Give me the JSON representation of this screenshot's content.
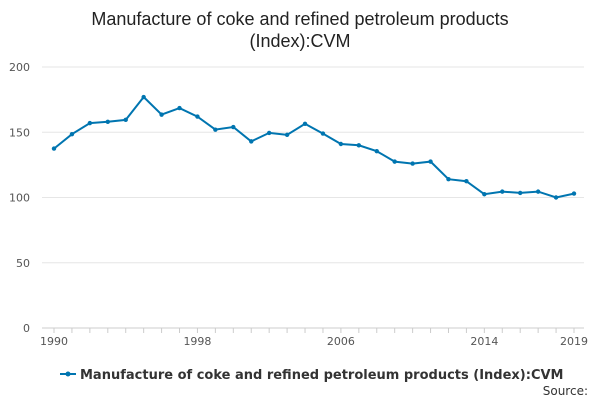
{
  "chart_data": {
    "type": "line",
    "title": "Manufacture of coke and refined petroleum products\n(Index):CVM",
    "xlabel": "",
    "ylabel": "",
    "x": [
      1990,
      1991,
      1992,
      1993,
      1994,
      1995,
      1996,
      1997,
      1998,
      1999,
      2000,
      2001,
      2002,
      2003,
      2004,
      2005,
      2006,
      2007,
      2008,
      2009,
      2010,
      2011,
      2012,
      2013,
      2014,
      2015,
      2016,
      2017,
      2018,
      2019
    ],
    "series": [
      {
        "name": "Manufacture of coke and refined petroleum products (Index):CVM",
        "color": "#0075b0",
        "values": [
          137.5,
          148.5,
          157,
          158,
          159.5,
          177,
          163.5,
          168.5,
          162,
          152,
          154,
          143,
          149.5,
          148,
          156.5,
          149,
          141,
          140,
          135.5,
          127.5,
          126,
          127.5,
          114,
          112.5,
          102.5,
          104.5,
          103.5,
          104.5,
          100,
          103
        ]
      }
    ],
    "xticks": [
      "1990",
      "1998",
      "2006",
      "2014",
      "2019"
    ],
    "yticks": [
      0,
      50,
      100,
      150,
      200
    ],
    "ylim": [
      0,
      200
    ],
    "xlim": [
      1990,
      2019
    ],
    "grid": true,
    "legend": "bottom",
    "source_label": "Source:"
  }
}
